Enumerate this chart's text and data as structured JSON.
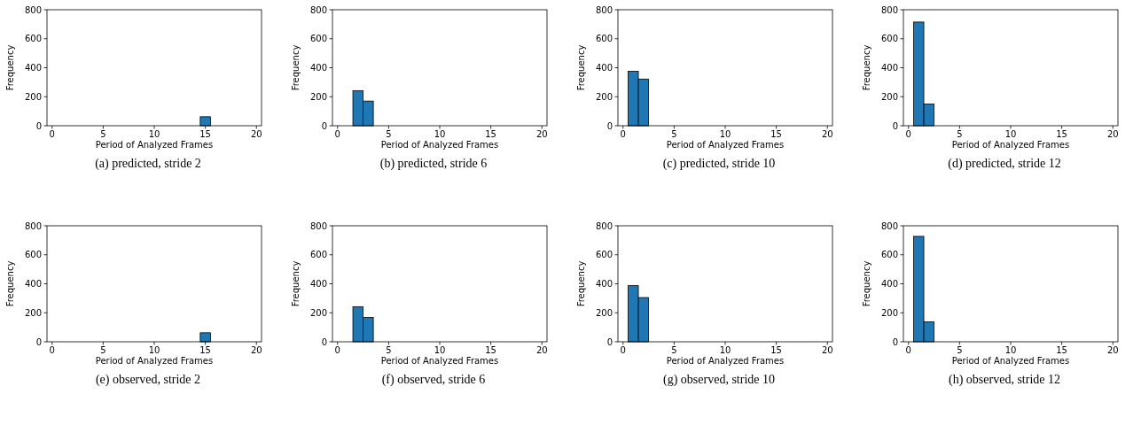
{
  "chart_data": [
    {
      "type": "histogram",
      "title": "(a) predicted, stride 2",
      "xlabel": "Period of Analyzed Frames",
      "ylabel": "Frequency",
      "bins": [
        0.5,
        1.5,
        2.5,
        3.5,
        4.5,
        5.5,
        6.5,
        7.5,
        8.5,
        9.5,
        10.5,
        11.5,
        12.5,
        13.5,
        14.5,
        15.5,
        16.5,
        17.5,
        18.5,
        19.5
      ],
      "values": [
        0,
        0,
        0,
        0,
        0,
        0,
        0,
        0,
        0,
        0,
        0,
        0,
        0,
        null,
        62,
        0,
        0,
        0,
        0
      ],
      "color": "#1f77b4",
      "xlim": [
        -0.5,
        20.5
      ],
      "ylim": [
        0,
        800
      ],
      "xticks": [
        0,
        5,
        10,
        15,
        20
      ],
      "yticks": [
        0,
        200,
        400,
        600,
        800
      ]
    },
    {
      "type": "histogram",
      "title": "(b) predicted, stride 6",
      "xlabel": "Period of Analyzed Frames",
      "ylabel": "Frequency",
      "bins": [
        0.5,
        1.5,
        2.5,
        3.5,
        4.5,
        5.5,
        6.5,
        7.5,
        8.5,
        9.5,
        10.5,
        11.5,
        12.5,
        13.5,
        14.5,
        15.5,
        16.5,
        17.5,
        18.5,
        19.5
      ],
      "values": [
        0,
        242,
        170,
        0,
        0,
        0,
        0,
        0,
        0,
        0,
        0,
        0,
        0,
        0,
        0,
        0,
        0,
        0,
        0
      ],
      "color": "#1f77b4",
      "xlim": [
        -0.5,
        20.5
      ],
      "ylim": [
        0,
        800
      ],
      "xticks": [
        0,
        5,
        10,
        15,
        20
      ],
      "yticks": [
        0,
        200,
        400,
        600,
        800
      ]
    },
    {
      "type": "histogram",
      "title": "(c) predicted, stride 10",
      "xlabel": "Period of Analyzed Frames",
      "ylabel": "Frequency",
      "bins": [
        0.5,
        1.5,
        2.5,
        3.5,
        4.5,
        5.5,
        6.5,
        7.5,
        8.5,
        9.5,
        10.5,
        11.5,
        12.5,
        13.5,
        14.5,
        15.5,
        16.5,
        17.5,
        18.5,
        19.5
      ],
      "values": [
        375,
        322,
        0,
        0,
        0,
        0,
        0,
        0,
        0,
        0,
        0,
        0,
        0,
        0,
        0,
        0,
        0,
        0,
        0
      ],
      "color": "#1f77b4",
      "xlim": [
        -0.5,
        20.5
      ],
      "ylim": [
        0,
        800
      ],
      "xticks": [
        0,
        5,
        10,
        15,
        20
      ],
      "yticks": [
        0,
        200,
        400,
        600,
        800
      ]
    },
    {
      "type": "histogram",
      "title": "(d) predicted, stride 12",
      "xlabel": "Period of Analyzed Frames",
      "ylabel": "Frequency",
      "bins": [
        0.5,
        1.5,
        2.5,
        3.5,
        4.5,
        5.5,
        6.5,
        7.5,
        8.5,
        9.5,
        10.5,
        11.5,
        12.5,
        13.5,
        14.5,
        15.5,
        16.5,
        17.5,
        18.5,
        19.5
      ],
      "values": [
        715,
        150,
        0,
        0,
        0,
        0,
        0,
        0,
        0,
        0,
        0,
        0,
        0,
        0,
        0,
        0,
        0,
        0,
        0
      ],
      "color": "#1f77b4",
      "xlim": [
        -0.5,
        20.5
      ],
      "ylim": [
        0,
        800
      ],
      "xticks": [
        0,
        5,
        10,
        15,
        20
      ],
      "yticks": [
        0,
        200,
        400,
        600,
        800
      ]
    },
    {
      "type": "histogram",
      "title": "(e) observed, stride 2",
      "xlabel": "Period of Analyzed Frames",
      "ylabel": "Frequency",
      "bins": [
        0.5,
        1.5,
        2.5,
        3.5,
        4.5,
        5.5,
        6.5,
        7.5,
        8.5,
        9.5,
        10.5,
        11.5,
        12.5,
        13.5,
        14.5,
        15.5,
        16.5,
        17.5,
        18.5,
        19.5
      ],
      "values": [
        0,
        0,
        0,
        0,
        0,
        0,
        0,
        0,
        0,
        0,
        0,
        0,
        0,
        0,
        62,
        null,
        0,
        0,
        0
      ],
      "color": "#1f77b4",
      "xlim": [
        -0.5,
        20.5
      ],
      "ylim": [
        0,
        800
      ],
      "xticks": [
        0,
        5,
        10,
        15,
        20
      ],
      "yticks": [
        0,
        200,
        400,
        600,
        800
      ]
    },
    {
      "type": "histogram",
      "title": "(f) observed, stride 6",
      "xlabel": "Period of Analyzed Frames",
      "ylabel": "Frequency",
      "bins": [
        0.5,
        1.5,
        2.5,
        3.5,
        4.5,
        5.5,
        6.5,
        7.5,
        8.5,
        9.5,
        10.5,
        11.5,
        12.5,
        13.5,
        14.5,
        15.5,
        16.5,
        17.5,
        18.5,
        19.5
      ],
      "values": [
        0,
        242,
        168,
        0,
        0,
        0,
        0,
        0,
        0,
        0,
        0,
        null,
        0,
        0,
        0,
        0,
        0,
        0,
        0
      ],
      "color": "#1f77b4",
      "xlim": [
        -0.5,
        20.5
      ],
      "ylim": [
        0,
        800
      ],
      "xticks": [
        0,
        5,
        10,
        15,
        20
      ],
      "yticks": [
        0,
        200,
        400,
        600,
        800
      ]
    },
    {
      "type": "histogram",
      "title": "(g) observed, stride 10",
      "xlabel": "Period of Analyzed Frames",
      "ylabel": "Frequency",
      "bins": [
        0.5,
        1.5,
        2.5,
        3.5,
        4.5,
        5.5,
        6.5,
        7.5,
        8.5,
        9.5,
        10.5,
        11.5,
        12.5,
        13.5,
        14.5,
        15.5,
        16.5,
        17.5,
        18.5,
        19.5
      ],
      "values": [
        387,
        305,
        0,
        0,
        0,
        0,
        0,
        0,
        0,
        0,
        0,
        0,
        0,
        0,
        0,
        0,
        0,
        0,
        0
      ],
      "color": "#1f77b4",
      "xlim": [
        -0.5,
        20.5
      ],
      "ylim": [
        0,
        800
      ],
      "xticks": [
        0,
        5,
        10,
        15,
        20
      ],
      "yticks": [
        0,
        200,
        400,
        600,
        800
      ]
    },
    {
      "type": "histogram",
      "title": "(h) observed, stride 12",
      "xlabel": "Period of Analyzed Frames",
      "ylabel": "Frequency",
      "bins": [
        0.5,
        1.5,
        2.5,
        3.5,
        4.5,
        5.5,
        6.5,
        7.5,
        8.5,
        9.5,
        10.5,
        11.5,
        12.5,
        13.5,
        14.5,
        15.5,
        16.5,
        17.5,
        18.5,
        19.5
      ],
      "values": [
        727,
        138,
        0,
        0,
        0,
        0,
        0,
        0,
        0,
        0,
        0,
        0,
        0,
        0,
        0,
        0,
        0,
        0,
        0
      ],
      "color": "#1f77b4",
      "xlim": [
        -0.5,
        20.5
      ],
      "ylim": [
        0,
        800
      ],
      "xticks": [
        0,
        5,
        10,
        15,
        20
      ],
      "yticks": [
        0,
        200,
        400,
        600,
        800
      ]
    }
  ]
}
